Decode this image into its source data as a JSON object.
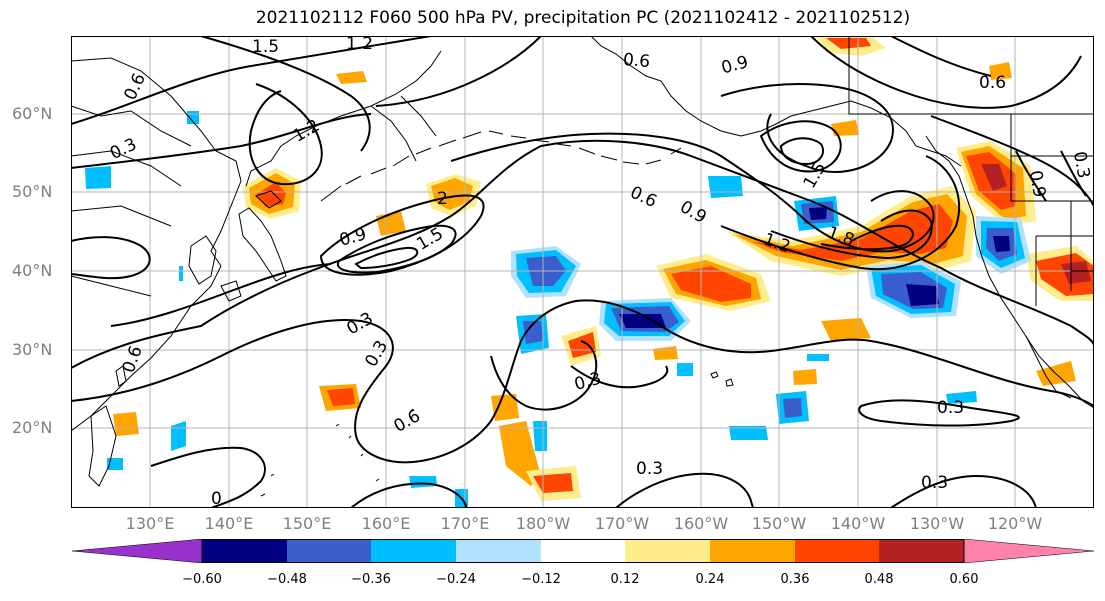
{
  "title": "2021102112 F060 500 hPa PV, precipitation PC (2021102412 - 2021102512)",
  "lat_labels": [
    "60°N",
    "50°N",
    "40°N",
    "30°N",
    "20°N"
  ],
  "lon_labels": [
    "130°E",
    "140°E",
    "150°E",
    "160°E",
    "170°E",
    "180°W",
    "170°W",
    "160°W",
    "150°W",
    "140°W",
    "130°W",
    "120°W"
  ],
  "pv_contour_labels": [
    "1.5",
    "1.2",
    "0.6",
    "0.9",
    "0.6",
    "0.3",
    "1.2",
    "1.5",
    "2",
    "0.9",
    "1.5",
    "0.6",
    "0.9",
    "1.2",
    "1.8",
    "0.6",
    "0.9",
    "0.3",
    "0.3",
    "0.6",
    "0.3",
    "0.3",
    "0.6",
    "0.3",
    "0.3",
    "0.3",
    "0"
  ],
  "colorbar": {
    "ticks": [
      "−0.60",
      "−0.48",
      "−0.36",
      "−0.24",
      "−0.12",
      "0.12",
      "0.24",
      "0.36",
      "0.48",
      "0.60"
    ],
    "colors": [
      "#9932cc",
      "#000080",
      "#3a5fcd",
      "#00bfff",
      "#b0e2ff",
      "#ffffff",
      "#ffec8b",
      "#ffa500",
      "#ff4500",
      "#b22222",
      "#ff82ab"
    ]
  }
}
